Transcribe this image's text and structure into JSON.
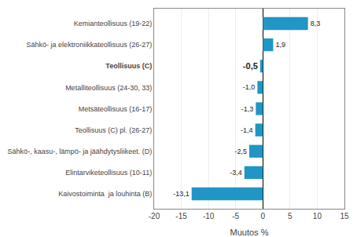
{
  "chart_data": {
    "type": "bar",
    "orientation": "horizontal",
    "categories": [
      "Kemianteollisuus (19-22)",
      "Sähkö- ja elektroniikkateollisuus (26-27)",
      "Teollisuus (C)",
      "Metalliteollisuus (24-30, 33)",
      "Metsäteollisuus (16-17)",
      "Teollisuus (C) pl. (26-27)",
      "Sähkö-, kaasu-, lämpö- ja jäähdytysliikeet. (D)",
      "Elintarviketeollisuus (10-11)",
      "Kaivostoiminta  ja louhinta (B)"
    ],
    "values": [
      8.3,
      1.9,
      -0.5,
      -1.0,
      -1.3,
      -1.4,
      -2.5,
      -3.4,
      -13.1
    ],
    "value_labels": [
      "8,3",
      "1,9",
      "-0,5",
      "-1,0",
      "-1,3",
      "-1,4",
      "-2,5",
      "-3,4",
      "-13,1"
    ],
    "data_labels": true,
    "color": "#2196c4",
    "xlabel": "Muutos %",
    "xlim": [
      -20,
      15
    ],
    "xticks": [
      -20,
      -15,
      -10,
      -5,
      0,
      5,
      10,
      15
    ],
    "grid": true
  }
}
